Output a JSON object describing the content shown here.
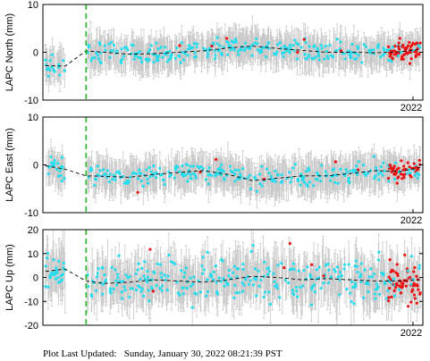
{
  "footer": {
    "label": "Plot Last Updated:",
    "timestamp": "Sunday, January 30, 2022 08:21:39 PST"
  },
  "colors": {
    "observations": "#22ddee",
    "recent_observations": "#ee1111",
    "error_bars": "#c8c8c8",
    "model_line": "#000000",
    "event_marker": "#22bb22"
  },
  "chart_data": [
    {
      "type": "scatter",
      "ylabel": "LAPC North (mm)",
      "ylim": [
        -10,
        10
      ],
      "yticks": [
        -10,
        0,
        10
      ],
      "xlim": [
        2007.0,
        2022.4
      ],
      "year_label": "2022",
      "event_marker_x": 2008.75,
      "model_line": {
        "x": [
          2007.1,
          2007.9,
          2008.75,
          2009.5,
          2010.5,
          2011.5,
          2012.5,
          2013.5,
          2014.5,
          2015.5,
          2016.5,
          2017.5,
          2018.5,
          2019.5,
          2020.5,
          2021.5,
          2022.3
        ],
        "y": [
          -2.8,
          -2.9,
          0.3,
          0.0,
          -0.4,
          -0.3,
          0.0,
          0.3,
          0.9,
          1.3,
          0.8,
          0.4,
          0.0,
          0.0,
          -0.1,
          0.1,
          0.6
        ]
      },
      "points": {
        "noise": 1.1,
        "recent_start": 2021.0,
        "error_bar": 2.8
      }
    },
    {
      "type": "scatter",
      "ylabel": "LAPC East (mm)",
      "ylim": [
        -10,
        10
      ],
      "yticks": [
        -10,
        0,
        10
      ],
      "xlim": [
        2007.0,
        2022.4
      ],
      "year_label": "2022",
      "event_marker_x": 2008.75,
      "model_line": {
        "x": [
          2007.1,
          2007.9,
          2008.75,
          2009.5,
          2010.5,
          2011.5,
          2012.5,
          2013.5,
          2014.5,
          2015.5,
          2016.5,
          2017.5,
          2018.5,
          2019.5,
          2020.5,
          2021.5,
          2022.3
        ],
        "y": [
          -0.2,
          -0.9,
          -2.3,
          -2.4,
          -2.6,
          -2.0,
          -1.6,
          -1.2,
          -2.0,
          -3.3,
          -2.8,
          -2.3,
          -2.3,
          -1.8,
          -1.2,
          -1.4,
          -0.5
        ]
      },
      "points": {
        "noise": 1.1,
        "recent_start": 2021.0,
        "error_bar": 3.0
      }
    },
    {
      "type": "scatter",
      "ylabel": "LAPC Up (mm)",
      "ylim": [
        -20,
        20
      ],
      "yticks": [
        -20,
        -10,
        0,
        10,
        20
      ],
      "xlim": [
        2007.0,
        2022.4
      ],
      "year_label": "2022",
      "event_marker_x": 2008.75,
      "model_line": {
        "x": [
          2007.1,
          2007.9,
          2008.75,
          2009.5,
          2010.5,
          2011.5,
          2012.5,
          2013.5,
          2014.5,
          2015.5,
          2016.5,
          2017.5,
          2018.5,
          2019.5,
          2020.5,
          2021.5,
          2022.3
        ],
        "y": [
          2.5,
          3.5,
          -1.5,
          -2.5,
          -2.0,
          -1.0,
          -1.5,
          -2.0,
          -1.0,
          0.5,
          0.0,
          -1.0,
          -0.5,
          -1.0,
          -1.5,
          -1.5,
          -1.0
        ]
      },
      "points": {
        "noise": 4.5,
        "recent_start": 2021.0,
        "error_bar": 7.5
      }
    }
  ]
}
